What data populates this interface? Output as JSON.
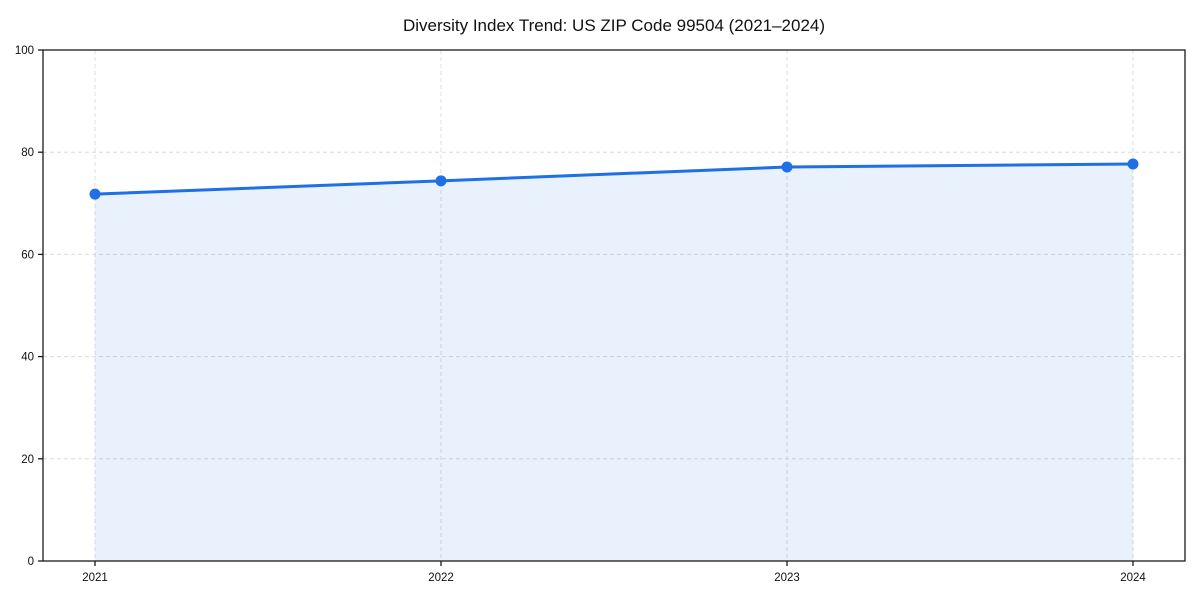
{
  "figure": {
    "background": "#ffffff"
  },
  "chart_data": {
    "type": "line",
    "title": "Diversity Index Trend: US ZIP Code 99504 (2021–2024)",
    "categories": [
      "2021",
      "2022",
      "2023",
      "2024"
    ],
    "series": [
      {
        "name": "Diversity Index",
        "values": [
          71.8,
          74.4,
          77.1,
          77.7
        ]
      }
    ],
    "xlabel": "",
    "ylabel": "",
    "ylim": [
      0,
      100
    ],
    "yticks": [
      0,
      20,
      40,
      60,
      80,
      100
    ],
    "grid": true,
    "grid_style": "dashed",
    "legend": "none",
    "area_fill": true,
    "marker": "circle",
    "colors": {
      "line": "#1f6fe6",
      "marker": "#1f6fe6",
      "fill": "rgba(33,114,229,0.10)",
      "grid": "#dcdcdc",
      "axis": "#1a1a1a",
      "text": "#111111",
      "background": "#ffffff"
    }
  }
}
